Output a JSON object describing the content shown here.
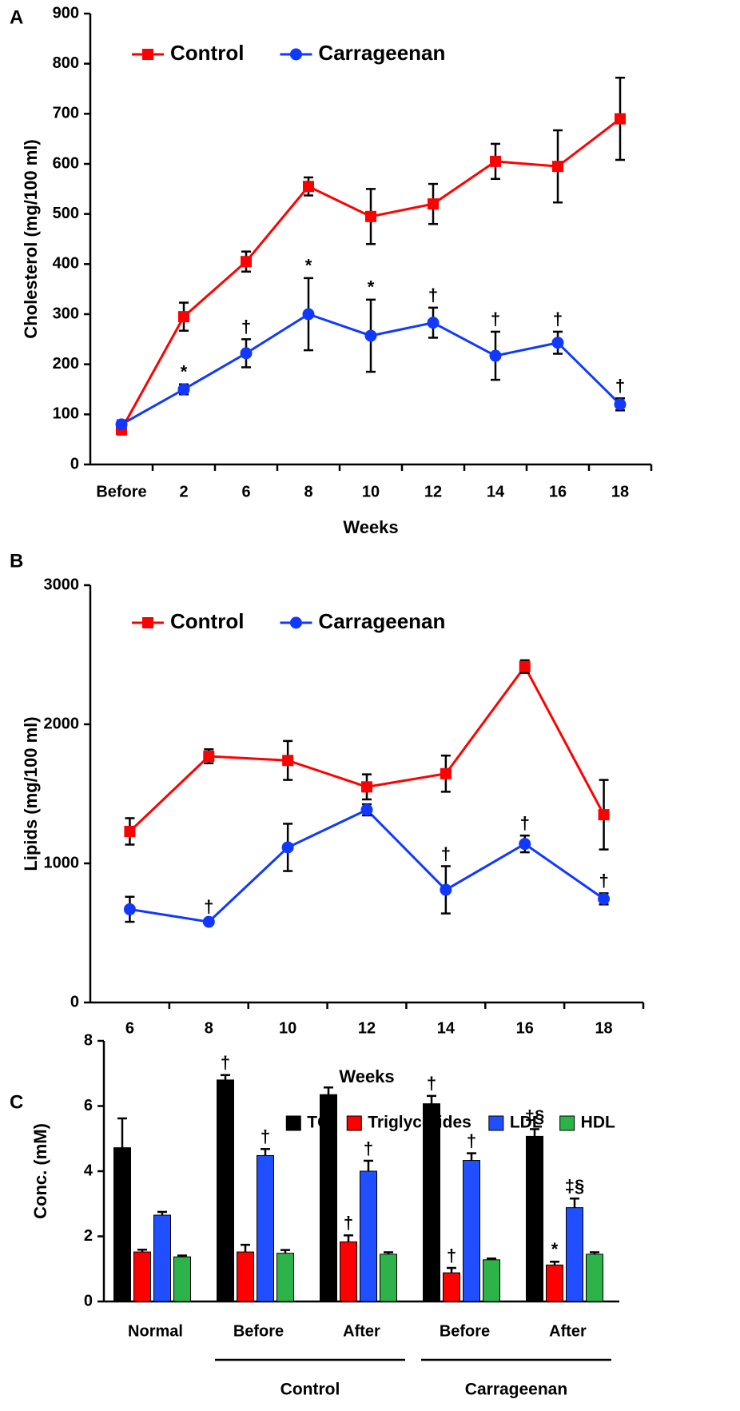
{
  "chart_data": [
    {
      "type": "line",
      "panel_label": "A",
      "ylabel": "Cholesterol (mg/100 ml)",
      "xlabel": "Weeks",
      "categories": [
        "Before",
        "2",
        "6",
        "8",
        "10",
        "12",
        "14",
        "16",
        "18"
      ],
      "ylim": [
        0,
        900
      ],
      "yticks": [
        0,
        100,
        200,
        300,
        400,
        500,
        600,
        700,
        800,
        900
      ],
      "legend": "upper-left",
      "series": [
        {
          "name": "Control",
          "color": "#ff0000",
          "marker": "square",
          "values": [
            70,
            295,
            405,
            555,
            495,
            520,
            605,
            595,
            690
          ],
          "errors": [
            10,
            28,
            20,
            18,
            55,
            40,
            35,
            72,
            82
          ]
        },
        {
          "name": "Carrageenan",
          "color": "#1038ff",
          "marker": "circle",
          "values": [
            80,
            150,
            222,
            300,
            257,
            283,
            217,
            243,
            120
          ],
          "errors": [
            8,
            10,
            28,
            72,
            72,
            30,
            48,
            22,
            12
          ],
          "annotations": [
            null,
            "*",
            "†",
            "*",
            "*",
            "†",
            "†",
            "†",
            "†"
          ]
        }
      ]
    },
    {
      "type": "line",
      "panel_label": "B",
      "ylabel": "Lipids (mg/100 ml)",
      "xlabel": "Weeks",
      "categories": [
        "6",
        "8",
        "10",
        "12",
        "14",
        "16",
        "18"
      ],
      "ylim": [
        0,
        3000
      ],
      "yticks": [
        0,
        1000,
        2000,
        3000
      ],
      "legend": "upper-left",
      "series": [
        {
          "name": "Control",
          "color": "#ff0000",
          "marker": "square",
          "values": [
            1230,
            1770,
            1740,
            1550,
            1645,
            2415,
            1350
          ],
          "errors": [
            95,
            50,
            140,
            90,
            130,
            45,
            250
          ]
        },
        {
          "name": "Carrageenan",
          "color": "#1038ff",
          "marker": "circle",
          "values": [
            670,
            580,
            1115,
            1385,
            810,
            1140,
            745
          ],
          "errors": [
            90,
            20,
            170,
            40,
            170,
            60,
            40
          ],
          "annotations": [
            null,
            "†",
            null,
            null,
            "†",
            "†",
            "†"
          ]
        }
      ]
    },
    {
      "type": "bar",
      "panel_label": "C",
      "ylabel": "Conc. (mM)",
      "category_groups": [
        {
          "name": null,
          "categories": [
            "Normal"
          ]
        },
        {
          "name": "Control",
          "categories": [
            "Before",
            "After"
          ]
        },
        {
          "name": "Carrageenan",
          "categories": [
            "Before",
            "After"
          ]
        }
      ],
      "ylim": [
        0,
        8
      ],
      "yticks": [
        0,
        2,
        4,
        6,
        8
      ],
      "legend": "upper-right",
      "series": [
        {
          "name": "TC",
          "color": "#000000",
          "values": [
            4.72,
            6.8,
            6.35,
            6.07,
            5.07
          ],
          "errors": [
            0.9,
            0.15,
            0.22,
            0.24,
            0.22
          ],
          "annotations": [
            null,
            "†",
            null,
            "†",
            "‡§"
          ]
        },
        {
          "name": "Triglycerides",
          "color": "#ff0000",
          "values": [
            1.52,
            1.52,
            1.83,
            0.88,
            1.12
          ],
          "errors": [
            0.07,
            0.22,
            0.2,
            0.15,
            0.1
          ],
          "annotations": [
            null,
            null,
            "†",
            "†",
            "*"
          ]
        },
        {
          "name": "LDL",
          "color": "#1f4fff",
          "values": [
            2.65,
            4.48,
            4.0,
            4.33,
            2.88
          ],
          "errors": [
            0.1,
            0.2,
            0.32,
            0.22,
            0.28
          ],
          "annotations": [
            null,
            "†",
            "†",
            "†",
            "‡§"
          ]
        },
        {
          "name": "HDL",
          "color": "#2db34a",
          "values": [
            1.37,
            1.48,
            1.45,
            1.28,
            1.45
          ],
          "errors": [
            0.04,
            0.1,
            0.06,
            0.04,
            0.06
          ]
        }
      ]
    }
  ]
}
